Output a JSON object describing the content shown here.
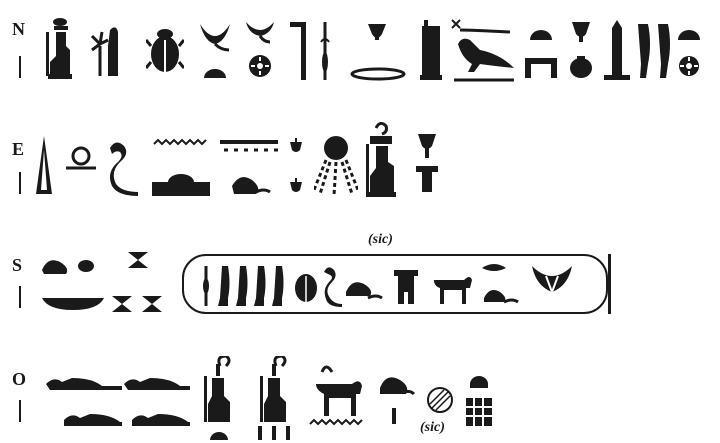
{
  "rows": [
    {
      "direction": "N"
    },
    {
      "direction": "E"
    },
    {
      "direction": "S",
      "note": "(sic)"
    },
    {
      "direction": "O",
      "note": "(sic)"
    }
  ],
  "colors": {
    "ink": "#1a1a1a",
    "background": "#ffffff"
  }
}
